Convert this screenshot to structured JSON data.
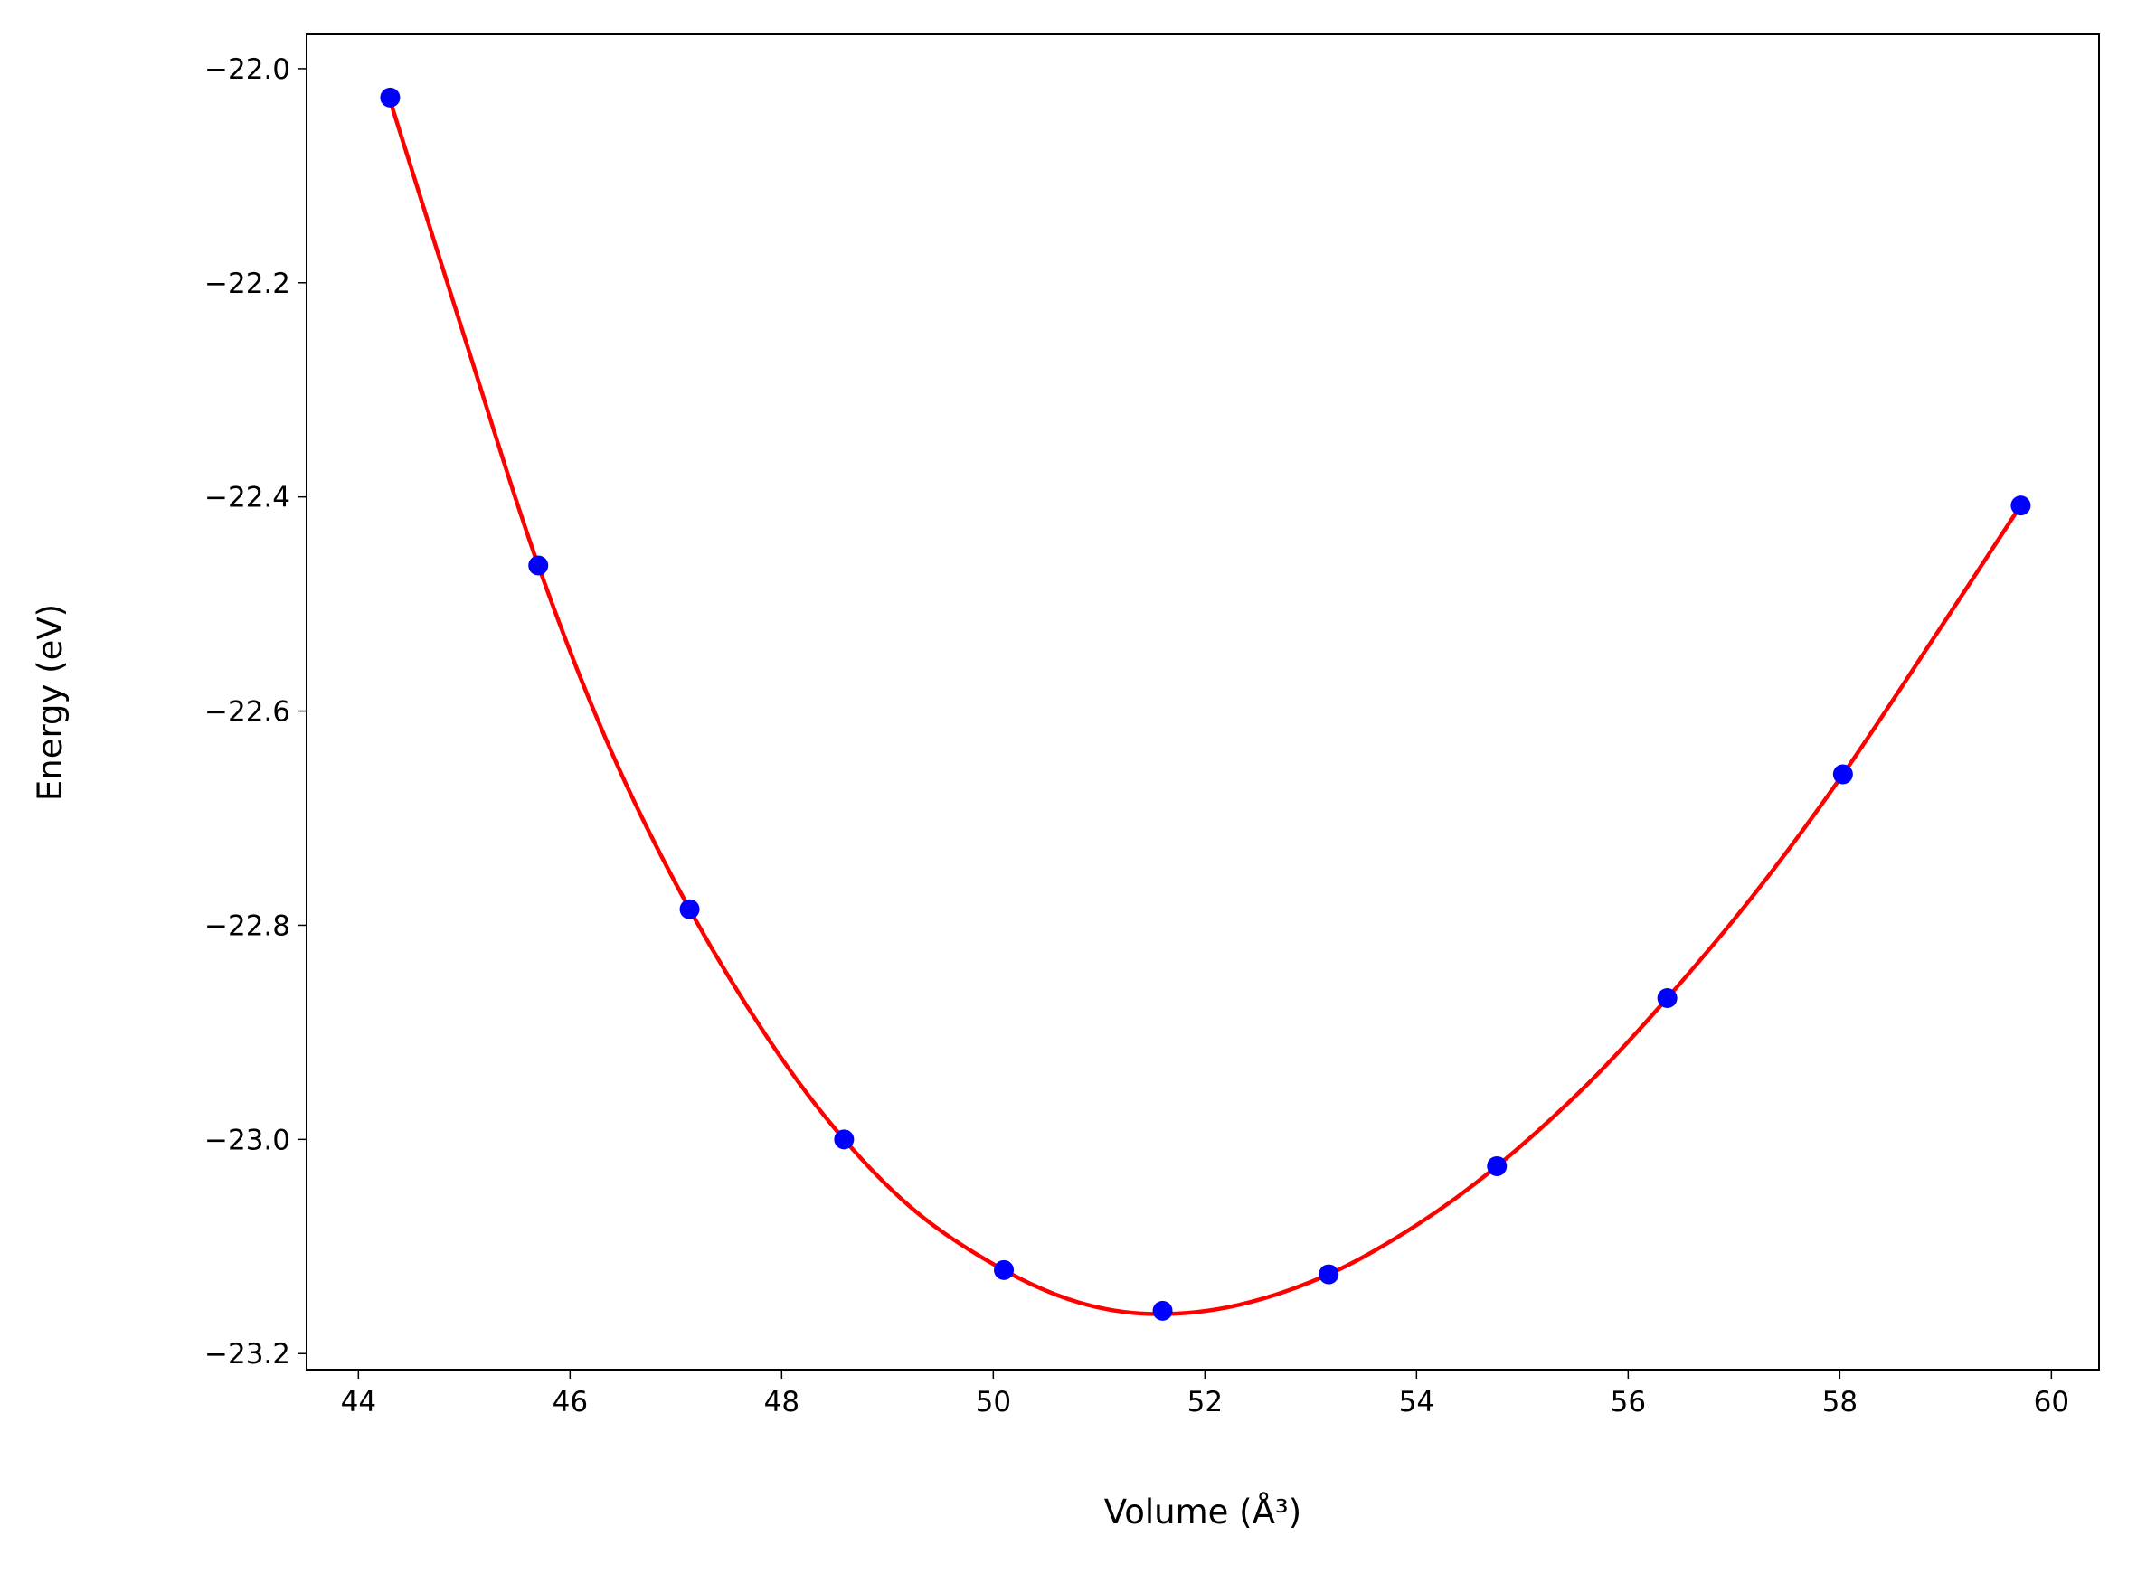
{
  "chart_data": {
    "type": "scatter",
    "x_label": "Volume (Å³)",
    "y_label": "Energy (eV)",
    "x": [
      44.3,
      45.7,
      47.13,
      48.59,
      50.1,
      51.6,
      53.17,
      54.76,
      56.37,
      58.03,
      59.71
    ],
    "values": [
      -22.027,
      -22.464,
      -22.785,
      -23.0,
      -23.122,
      -23.16,
      -23.126,
      -23.025,
      -22.868,
      -22.659,
      -22.408
    ],
    "color": "#0000ff",
    "fit": {
      "color": "#ff0000",
      "x": [
        44.3,
        45.0,
        45.7,
        46.4,
        47.13,
        47.9,
        48.59,
        49.3,
        50.1,
        50.8,
        51.5,
        52.3,
        53.17,
        54.0,
        54.76,
        55.6,
        56.37,
        57.2,
        58.03,
        58.9,
        59.71
      ],
      "values": [
        -22.03,
        -22.25,
        -22.464,
        -22.64,
        -22.785,
        -22.91,
        -23.0,
        -23.07,
        -23.122,
        -23.152,
        -23.163,
        -23.155,
        -23.126,
        -23.08,
        -23.025,
        -22.95,
        -22.868,
        -22.77,
        -22.659,
        -22.53,
        -22.408
      ]
    },
    "xlim": [
      43.51,
      60.45
    ],
    "ylim": [
      -23.215,
      -21.968
    ],
    "xticks": [
      44,
      46,
      48,
      50,
      52,
      54,
      56,
      58,
      60
    ],
    "yticks": [
      {
        "value": -22.0,
        "label": "−22.0"
      },
      {
        "value": -22.2,
        "label": "−22.2"
      },
      {
        "value": -22.4,
        "label": "−22.4"
      },
      {
        "value": -22.6,
        "label": "−22.6"
      },
      {
        "value": -22.8,
        "label": "−22.8"
      },
      {
        "value": -23.0,
        "label": "−23.0"
      },
      {
        "value": -23.2,
        "label": "−23.2"
      }
    ],
    "grid": false
  }
}
